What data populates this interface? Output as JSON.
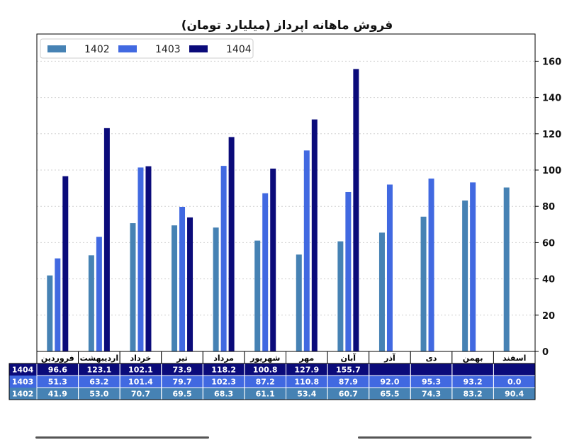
{
  "chart_data": {
    "type": "bar",
    "title": "فروش ماهانه اپرداز (میلیارد تومان)",
    "xlabel": "",
    "ylabel": "",
    "categories": [
      "فروردین",
      "اردیبهشت",
      "خرداد",
      "تیر",
      "مرداد",
      "شهریور",
      "مهر",
      "آبان",
      "آذر",
      "دی",
      "بهمن",
      "اسفند"
    ],
    "series": [
      {
        "name": "1402",
        "color": "#4682b4",
        "values": [
          41.9,
          53.0,
          70.7,
          69.5,
          68.3,
          61.1,
          53.4,
          60.7,
          65.5,
          74.3,
          83.2,
          90.4
        ]
      },
      {
        "name": "1403",
        "color": "#4169e1",
        "values": [
          51.3,
          63.2,
          101.4,
          79.7,
          102.3,
          87.2,
          110.8,
          87.9,
          92.0,
          95.3,
          93.2,
          0.0
        ]
      },
      {
        "name": "1404",
        "color": "#0b0b7a",
        "values": [
          96.6,
          123.1,
          102.1,
          73.9,
          118.2,
          100.8,
          127.9,
          155.7,
          null,
          null,
          null,
          null
        ]
      }
    ],
    "ylim": [
      0,
      175
    ],
    "yticks": [
      0,
      20,
      40,
      60,
      80,
      100,
      120,
      140,
      160
    ],
    "grid": true,
    "legend_position": "top-left",
    "table": {
      "row_order": [
        "1404",
        "1403",
        "1402"
      ],
      "cells": {
        "1404": [
          "96.6",
          "123.1",
          "102.1",
          "73.9",
          "118.2",
          "100.8",
          "127.9",
          "155.7",
          "",
          "",
          "",
          ""
        ],
        "1403": [
          "51.3",
          "63.2",
          "101.4",
          "79.7",
          "102.3",
          "87.2",
          "110.8",
          "87.9",
          "92.0",
          "95.3",
          "93.2",
          "0.0"
        ],
        "1402": [
          "41.9",
          "53.0",
          "70.7",
          "69.5",
          "68.3",
          "61.1",
          "53.4",
          "60.7",
          "65.5",
          "74.3",
          "83.2",
          "90.4"
        ]
      },
      "row_colors": {
        "1404": "#0b0b7a",
        "1403": "#4169e1",
        "1402": "#4682b4"
      }
    }
  }
}
